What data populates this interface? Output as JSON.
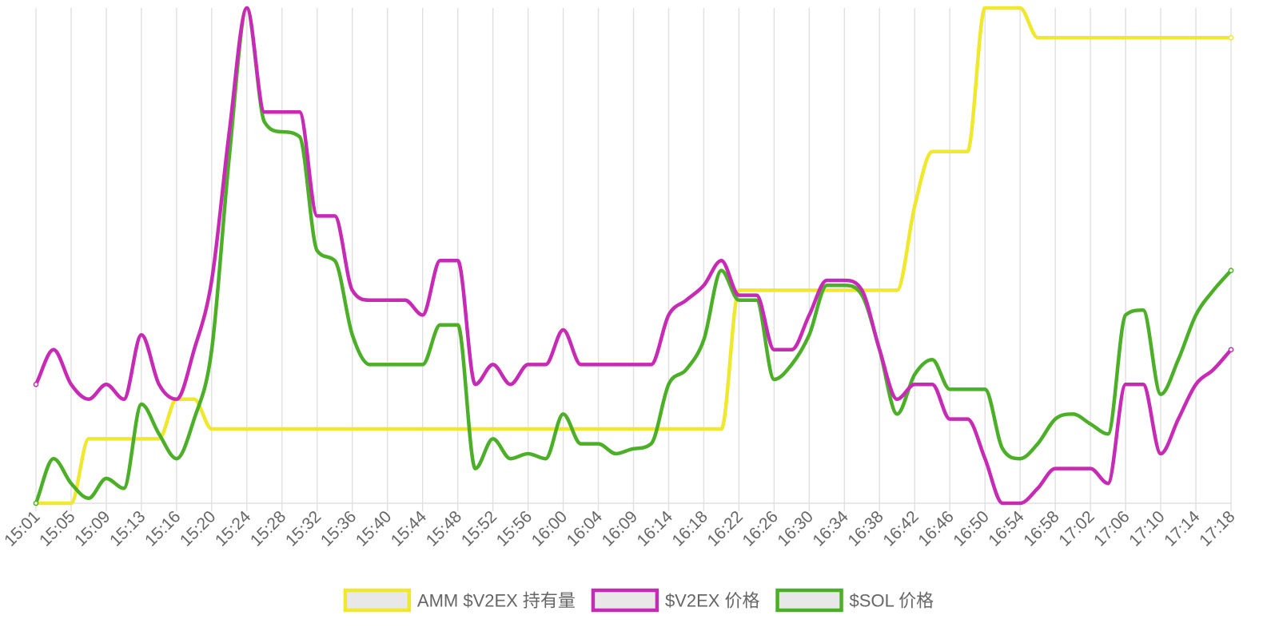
{
  "chart_data": {
    "type": "line",
    "x": [
      "15:01",
      "15:03",
      "15:05",
      "15:07",
      "15:09",
      "15:11",
      "15:13",
      "15:15",
      "15:16",
      "15:18",
      "15:20",
      "15:22",
      "15:24",
      "15:26",
      "15:28",
      "15:30",
      "15:32",
      "15:34",
      "15:36",
      "15:38",
      "15:40",
      "15:42",
      "15:44",
      "15:46",
      "15:48",
      "15:50",
      "15:52",
      "15:54",
      "15:56",
      "15:58",
      "16:00",
      "16:02",
      "16:04",
      "16:07",
      "16:09",
      "16:11",
      "16:14",
      "16:16",
      "16:18",
      "16:20",
      "16:22",
      "16:24",
      "16:26",
      "16:28",
      "16:30",
      "16:32",
      "16:34",
      "16:36",
      "16:38",
      "16:40",
      "16:42",
      "16:44",
      "16:46",
      "16:48",
      "16:50",
      "16:52",
      "16:54",
      "16:56",
      "16:58",
      "17:00",
      "17:02",
      "17:04",
      "17:06",
      "17:08",
      "17:10",
      "17:12",
      "17:14",
      "17:16",
      "17:18"
    ],
    "tick_labels": [
      "15:01",
      "15:05",
      "15:09",
      "15:13",
      "15:16",
      "15:20",
      "15:24",
      "15:28",
      "15:32",
      "15:36",
      "15:40",
      "15:44",
      "15:48",
      "15:52",
      "15:56",
      "16:00",
      "16:04",
      "16:09",
      "16:14",
      "16:18",
      "16:22",
      "16:26",
      "16:30",
      "16:34",
      "16:38",
      "16:42",
      "16:46",
      "16:50",
      "16:54",
      "16:58",
      "17:02",
      "17:06",
      "17:10",
      "17:14",
      "17:18"
    ],
    "series": [
      {
        "name": "AMM $V2EX 持有量",
        "color": "#f0e82c",
        "values": [
          0,
          0,
          0,
          13,
          13,
          13,
          13,
          13,
          21,
          21,
          15,
          15,
          15,
          15,
          15,
          15,
          15,
          15,
          15,
          15,
          15,
          15,
          15,
          15,
          15,
          15,
          15,
          15,
          15,
          15,
          15,
          15,
          15,
          15,
          15,
          15,
          15,
          15,
          15,
          15,
          43,
          43,
          43,
          43,
          43,
          43,
          43,
          43,
          43,
          43,
          60,
          71,
          71,
          71,
          100,
          100,
          100,
          94,
          94,
          94,
          94,
          94,
          94,
          94,
          94,
          94,
          94,
          94,
          94
        ]
      },
      {
        "name": "$V2EX 价格",
        "color": "#c72bb5",
        "values": [
          24,
          31,
          24,
          21,
          24,
          21,
          34,
          24,
          21,
          31,
          45,
          75,
          100,
          79,
          79,
          79,
          58,
          58,
          43,
          41,
          41,
          41,
          38,
          49,
          49,
          24,
          28,
          24,
          28,
          28,
          35,
          28,
          28,
          28,
          28,
          28,
          38,
          41,
          44,
          49,
          42,
          42,
          31,
          31,
          38,
          45,
          45,
          43,
          31,
          21,
          24,
          24,
          17,
          17,
          9,
          0,
          0,
          3,
          7,
          7,
          7,
          4,
          24,
          24,
          10,
          17,
          24,
          27,
          31
        ]
      },
      {
        "name": "$SOL 价格",
        "color": "#4caf28",
        "values": [
          0,
          9,
          4,
          1,
          5,
          3,
          20,
          14,
          9,
          17,
          31,
          70,
          100,
          77,
          75,
          74,
          51,
          49,
          34,
          28,
          28,
          28,
          28,
          36,
          36,
          7,
          13,
          9,
          10,
          9,
          18,
          12,
          12,
          10,
          11,
          12,
          24,
          27,
          33,
          47,
          41,
          41,
          25,
          28,
          34,
          44,
          44,
          42,
          31,
          18,
          26,
          29,
          23,
          23,
          23,
          11,
          9,
          12,
          17,
          18,
          16,
          14,
          38,
          39,
          22,
          29,
          38,
          43,
          47
        ]
      }
    ],
    "xlabel": "",
    "ylabel": "",
    "ylim": [
      0,
      100
    ],
    "y_axis_labels_shown": false,
    "grid": {
      "vertical": true,
      "horizontal": false
    },
    "legend": "bottom-center"
  }
}
